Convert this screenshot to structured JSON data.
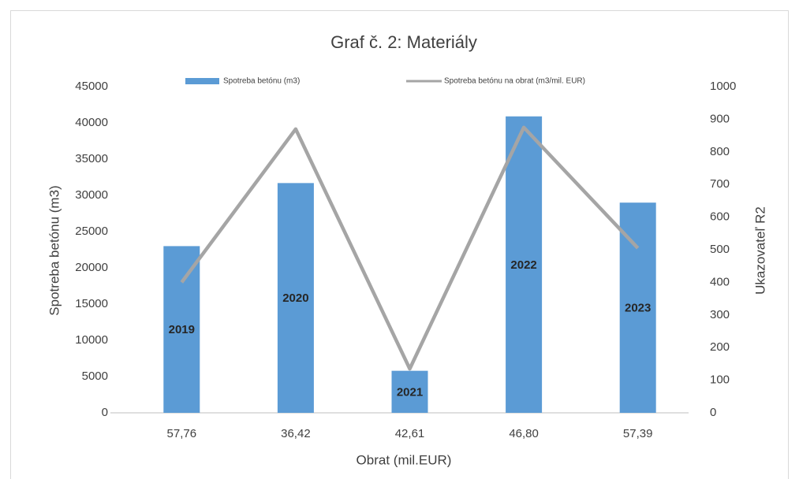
{
  "chart_data": {
    "type": "bar_line",
    "title": "Graf č. 2: Materiály",
    "x_label": "Obrat (mil.EUR)",
    "y_label": "Spotreba betónu (m3)",
    "y2_label": "Ukazovateľ R2",
    "categories": [
      "57,76",
      "36,42",
      "42,61",
      "46,80",
      "57,39"
    ],
    "series": [
      {
        "name": "Spotreba betónu (m3)",
        "type": "bar",
        "color": "#5b9bd5",
        "values": [
          23000,
          31700,
          5800,
          40900,
          29000
        ],
        "labels": [
          "2019",
          "2020",
          "2021",
          "2022",
          "2023"
        ]
      },
      {
        "name": "Spotreba betónu na obrat (m3/mil. EUR)",
        "type": "line",
        "axis": "y2",
        "color": "#a5a5a5",
        "values": [
          400,
          870,
          135,
          875,
          505
        ]
      }
    ],
    "ylim": [
      0,
      45000
    ],
    "yticks": [
      0,
      5000,
      10000,
      15000,
      20000,
      25000,
      30000,
      35000,
      40000,
      45000
    ],
    "y2lim": [
      0,
      1000
    ],
    "y2ticks": [
      0,
      100,
      200,
      300,
      400,
      500,
      600,
      700,
      800,
      900,
      1000
    ],
    "legend": "top",
    "grid": false
  }
}
